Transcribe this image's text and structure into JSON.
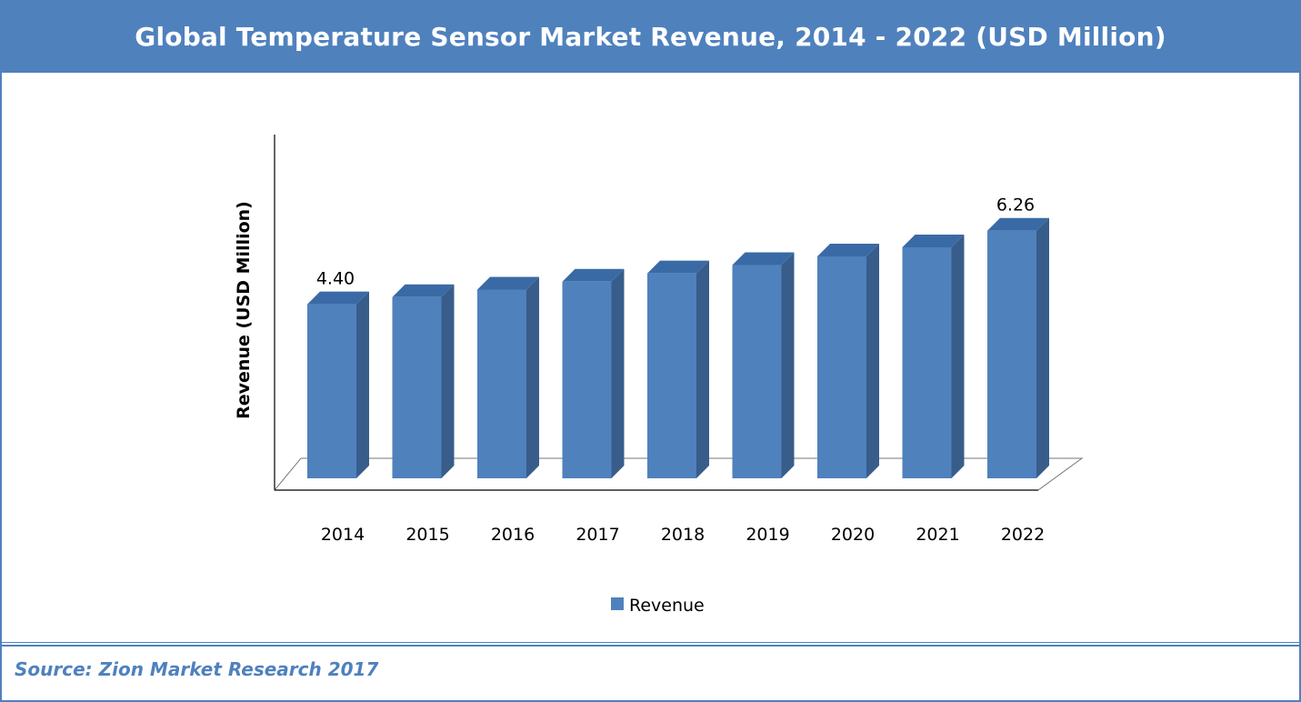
{
  "header": {
    "title": "Global Temperature Sensor Market Revenue, 2014 - 2022 (USD Million)"
  },
  "chart_data": {
    "type": "bar",
    "style": "3d-column",
    "title": "Global Temperature Sensor Market Revenue, 2014 - 2022 (USD Million)",
    "xlabel": "",
    "ylabel": "Revenue (USD Million)",
    "categories": [
      "2014",
      "2015",
      "2016",
      "2017",
      "2018",
      "2019",
      "2020",
      "2021",
      "2022"
    ],
    "series": [
      {
        "name": "Revenue",
        "values": [
          4.4,
          4.58,
          4.77,
          4.97,
          5.18,
          5.39,
          5.61,
          5.84,
          6.26
        ],
        "color": "#4f81bd"
      }
    ],
    "data_labels": [
      {
        "category": "2014",
        "text": "4.40"
      },
      {
        "category": "2022",
        "text": "6.26"
      }
    ],
    "ylim": [
      0,
      7.9
    ],
    "grid": false,
    "legend": {
      "position": "bottom",
      "entries": [
        "Revenue"
      ]
    }
  },
  "footer": {
    "source": "Source: Zion Market Research 2017"
  },
  "colors": {
    "accent": "#4f81bd",
    "bar_front": "#4f81bd",
    "bar_side": "#385d8a",
    "bar_top": "#3a6aa5"
  }
}
